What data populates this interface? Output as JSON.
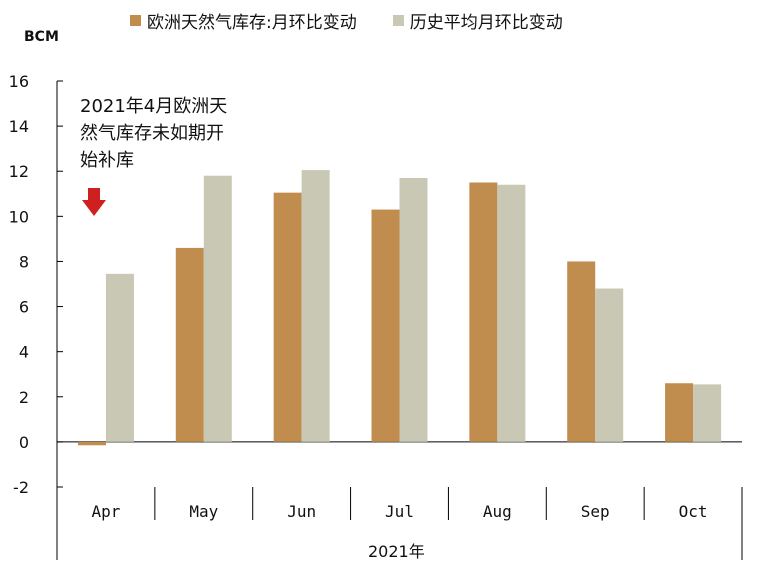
{
  "chart_data": {
    "type": "bar",
    "categories": [
      "Apr",
      "May",
      "Jun",
      "Jul",
      "Aug",
      "Sep",
      "Oct"
    ],
    "series": [
      {
        "name": "欧洲天然气库存:月环比变动",
        "color": "#c08d4e",
        "values": [
          -0.15,
          8.6,
          11.05,
          10.3,
          11.5,
          8.0,
          2.6
        ]
      },
      {
        "name": "历史平均月环比变动",
        "color": "#c8c8b4",
        "values": [
          7.45,
          11.8,
          12.05,
          11.7,
          11.4,
          6.8,
          2.55
        ]
      }
    ],
    "yunit": "BCM",
    "xlabel": "2021年",
    "ylim": [
      -2,
      16
    ],
    "yticks": [
      -2,
      0,
      2,
      4,
      6,
      8,
      10,
      12,
      14,
      16
    ],
    "ytick_labels": [
      "-2",
      "0",
      "2",
      "4",
      "6",
      "8",
      "10",
      "12",
      "14",
      "16"
    ],
    "annotation": "2021年4月欧洲天然气库存未如期开始补库",
    "annotation_arrow_color": "#d01f1f",
    "legend_position": "top",
    "grid": false
  }
}
